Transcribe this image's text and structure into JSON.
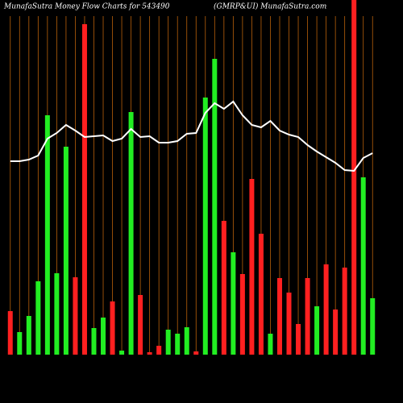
{
  "chart_data": {
    "type": "bar",
    "title": "MunafaSutra  Money Flow  Charts for 543490",
    "subtitle": "(GMRP&UI) MunafaSutra.com",
    "ylim": [
      0,
      440
    ],
    "categories": [
      null,
      null,
      null,
      null,
      null,
      null,
      null,
      null,
      null,
      null,
      null,
      null,
      null,
      null,
      null,
      null,
      null,
      null,
      null,
      null,
      null,
      null,
      null,
      null,
      null,
      null,
      null,
      null,
      null,
      null,
      null,
      null,
      null,
      null,
      null,
      null,
      null,
      null,
      null,
      null
    ],
    "series": [
      {
        "kind": "bar",
        "colors": [
          "#ff2020",
          "#22ee22",
          "#22ee22",
          "#22ee22",
          "#22ee22",
          "#22ee22",
          "#22ee22",
          "#ff2020",
          "#ff2020",
          "#22ee22",
          "#22ee22",
          "#ff2020",
          "#22ee22",
          "#22ee22",
          "#ff2020",
          "#ff2020",
          "#ff2020",
          "#22ee22",
          "#22ee22",
          "#22ee22",
          "#ff2020",
          "#22ee22",
          "#22ee22",
          "#ff2020",
          "#22ee22",
          "#ff2020",
          "#ff2020",
          "#ff2020",
          "#22ee22",
          "#ff2020",
          "#ff2020",
          "#ff2020",
          "#ff2020",
          "#22ee22",
          "#ff2020",
          "#ff2020",
          "#ff2020",
          "#ff2020",
          "#22ee22",
          "#22ee22"
        ],
        "values": [
          54,
          28,
          48,
          91,
          297,
          101,
          258,
          96,
          410,
          33,
          46,
          66,
          5,
          301,
          74,
          3,
          11,
          31,
          26,
          34,
          4,
          319,
          367,
          166,
          127,
          100,
          218,
          150,
          26,
          95,
          77,
          38,
          95,
          60,
          112,
          56,
          108,
          440,
          220,
          70
        ]
      },
      {
        "kind": "line",
        "color": "#ffffff",
        "values": [
          240,
          240,
          242,
          247,
          268,
          275,
          285,
          278,
          270,
          271,
          272,
          265,
          268,
          280,
          270,
          271,
          263,
          263,
          265,
          274,
          275,
          300,
          312,
          305,
          314,
          297,
          285,
          282,
          290,
          278,
          273,
          270,
          260,
          252,
          245,
          238,
          229,
          228,
          244,
          250
        ]
      }
    ]
  }
}
